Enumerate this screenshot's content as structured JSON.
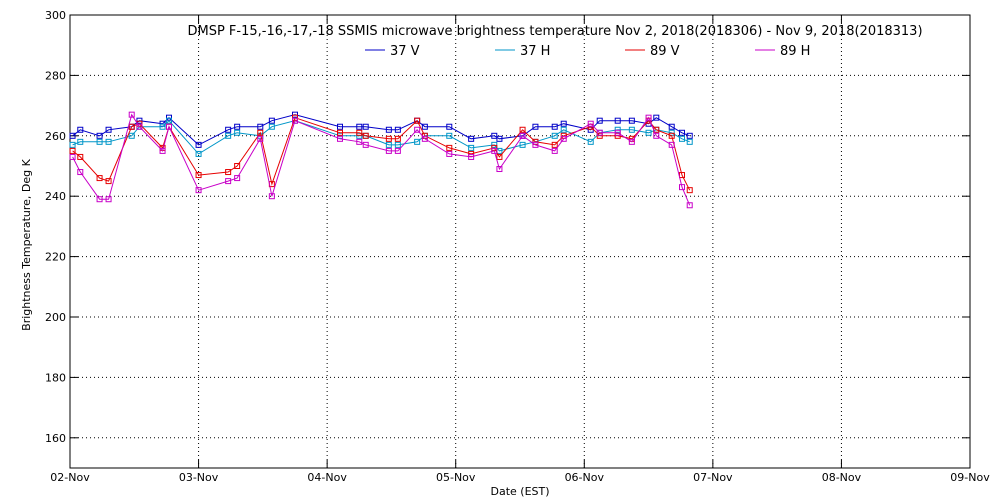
{
  "chart_data": {
    "type": "line",
    "title": "DMSP F-15,-16,-17,-18 SSMIS microwave brightness temperature Nov  2, 2018(2018306) - Nov  9, 2018(2018313)",
    "xlabel": "Date (EST)",
    "ylabel": "Brightness Temperature, Deg K",
    "ylim": [
      150,
      300
    ],
    "xlim": [
      0,
      7
    ],
    "x_ticks": [
      {
        "v": 0,
        "label": "02-Nov"
      },
      {
        "v": 1,
        "label": "03-Nov"
      },
      {
        "v": 2,
        "label": "04-Nov"
      },
      {
        "v": 3,
        "label": "05-Nov"
      },
      {
        "v": 4,
        "label": "06-Nov"
      },
      {
        "v": 5,
        "label": "07-Nov"
      },
      {
        "v": 6,
        "label": "08-Nov"
      },
      {
        "v": 7,
        "label": "09-Nov"
      }
    ],
    "y_ticks": [
      160,
      180,
      200,
      220,
      240,
      260,
      280,
      300
    ],
    "grid": true,
    "legend_position": "top-center",
    "x": [
      0.02,
      0.08,
      0.23,
      0.3,
      0.48,
      0.54,
      0.72,
      0.77,
      1.0,
      1.23,
      1.3,
      1.48,
      1.57,
      1.75,
      2.1,
      2.25,
      2.3,
      2.48,
      2.55,
      2.7,
      2.76,
      2.95,
      3.12,
      3.3,
      3.34,
      3.52,
      3.62,
      3.77,
      3.84,
      4.05,
      4.12,
      4.26,
      4.37,
      4.5,
      4.56,
      4.68,
      4.76,
      4.82
    ],
    "series": [
      {
        "name": "37 V",
        "color": "#0000c8",
        "values": [
          260,
          262,
          260,
          262,
          263,
          265,
          264,
          266,
          257,
          262,
          263,
          263,
          265,
          267,
          263,
          263,
          263,
          262,
          262,
          265,
          263,
          263,
          259,
          260,
          259,
          260,
          263,
          263,
          264,
          262,
          265,
          265,
          265,
          264,
          266,
          263,
          261,
          260
        ]
      },
      {
        "name": "37 H",
        "color": "#0096c8",
        "values": [
          257,
          258,
          258,
          258,
          260,
          263,
          263,
          265,
          254,
          260,
          261,
          260,
          263,
          265,
          260,
          260,
          260,
          257,
          257,
          258,
          260,
          260,
          256,
          257,
          255,
          257,
          258,
          260,
          262,
          258,
          261,
          262,
          262,
          261,
          262,
          261,
          259,
          258
        ]
      },
      {
        "name": "89 V",
        "color": "#e60000",
        "values": [
          255,
          253,
          246,
          245,
          263,
          264,
          256,
          263,
          247,
          248,
          250,
          261,
          244,
          266,
          261,
          261,
          260,
          259,
          259,
          265,
          260,
          256,
          254,
          256,
          253,
          262,
          258,
          257,
          260,
          263,
          260,
          260,
          259,
          265,
          262,
          260,
          247,
          242
        ]
      },
      {
        "name": "89 H",
        "color": "#c800c8",
        "values": [
          253,
          248,
          239,
          239,
          267,
          263,
          255,
          263,
          242,
          245,
          246,
          259,
          240,
          265,
          259,
          258,
          257,
          255,
          255,
          262,
          259,
          254,
          253,
          255,
          249,
          260,
          257,
          255,
          259,
          264,
          261,
          261,
          258,
          266,
          260,
          257,
          243,
          237
        ]
      }
    ]
  }
}
